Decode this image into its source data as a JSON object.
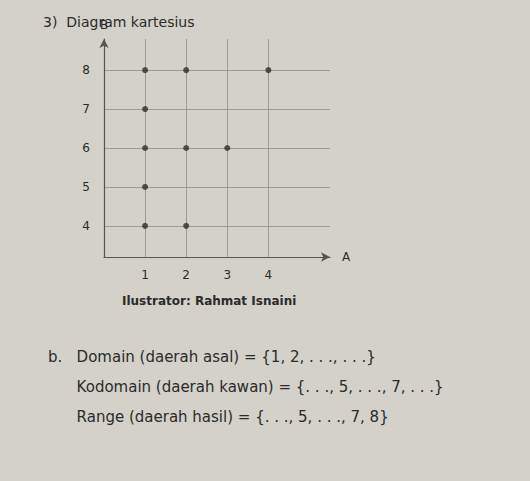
{
  "chart_data": {
    "type": "scatter",
    "title": "3)  Diagram kartesius",
    "x_label": "A",
    "y_label": "B",
    "x": [
      1,
      1,
      1,
      1,
      1,
      2,
      2,
      2,
      3,
      4
    ],
    "values": [
      4,
      5,
      6,
      7,
      8,
      4,
      6,
      8,
      6,
      8
    ],
    "color": "#2e2e2e",
    "marker": "circle",
    "xlim": [
      0,
      5.5
    ],
    "xticks": [
      1,
      2,
      3,
      4
    ],
    "ylim": [
      3.2,
      8.8
    ],
    "yticks": [
      4,
      5,
      6,
      7,
      8
    ],
    "grid": true,
    "annotations": [
      "Ilustrator: Rahmat Isnaini",
      "b.   Domain (daerah asal) = {1, 2, . . ., . . .}",
      "      Kodomain (daerah kawan) = {. . ., 5, . . ., 7, . . .}",
      "      Range (daerah hasil) = {. . ., 5, . . ., 7, 8}"
    ]
  }
}
